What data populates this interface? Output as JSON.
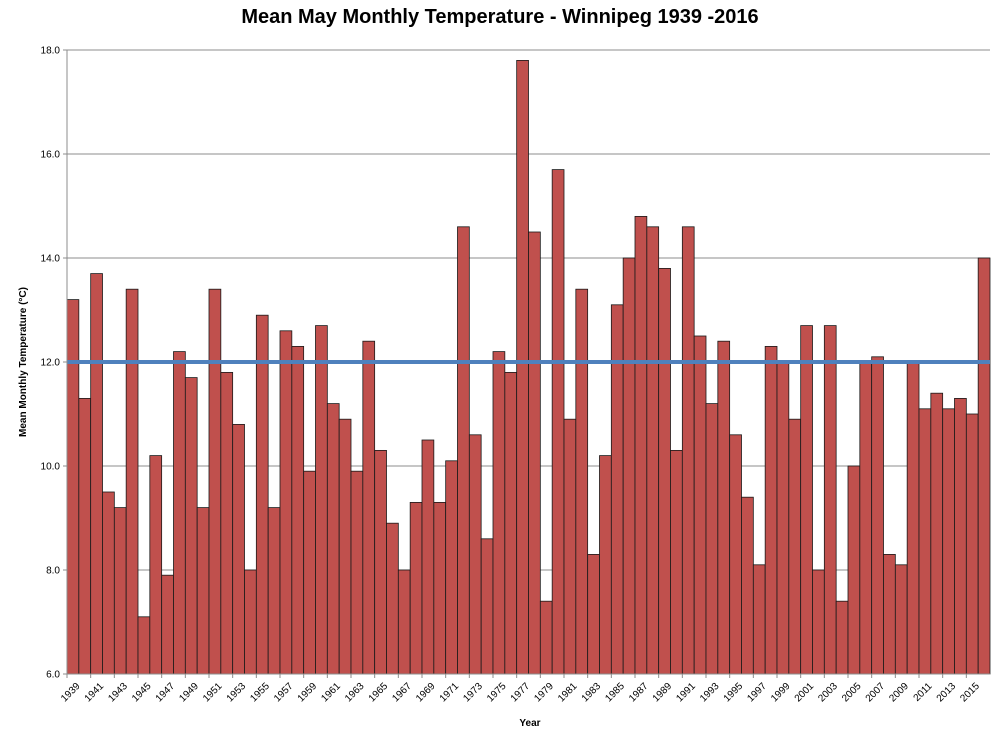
{
  "chart_data": {
    "type": "bar",
    "title": "Mean May Monthly Temperature - Winnipeg 1939 -2016",
    "xlabel": "Year",
    "ylabel": "Mean Monthly Temperature (°C)",
    "ylim": [
      6.0,
      18.0
    ],
    "yticks": [
      "6.0",
      "8.0",
      "10.0",
      "12.0",
      "14.0",
      "16.0",
      "18.0"
    ],
    "grid": true,
    "categories": [
      1939,
      1940,
      1941,
      1942,
      1943,
      1944,
      1945,
      1946,
      1947,
      1948,
      1949,
      1950,
      1951,
      1952,
      1953,
      1954,
      1955,
      1956,
      1957,
      1958,
      1959,
      1960,
      1961,
      1962,
      1963,
      1964,
      1965,
      1966,
      1967,
      1968,
      1969,
      1970,
      1971,
      1972,
      1973,
      1974,
      1975,
      1976,
      1977,
      1978,
      1979,
      1980,
      1981,
      1982,
      1983,
      1984,
      1985,
      1986,
      1987,
      1988,
      1989,
      1990,
      1991,
      1992,
      1993,
      1994,
      1995,
      1996,
      1997,
      1998,
      1999,
      2000,
      2001,
      2002,
      2003,
      2004,
      2005,
      2006,
      2007,
      2008,
      2009,
      2010,
      2011,
      2012,
      2013,
      2014,
      2015,
      2016
    ],
    "xtick_labels": [
      "1939",
      "1941",
      "1943",
      "1945",
      "1947",
      "1949",
      "1951",
      "1953",
      "1955",
      "1957",
      "1959",
      "1961",
      "1963",
      "1965",
      "1967",
      "1969",
      "1971",
      "1973",
      "1975",
      "1977",
      "1979",
      "1981",
      "1983",
      "1985",
      "1987",
      "1989",
      "1991",
      "1993",
      "1995",
      "1997",
      "1999",
      "2001",
      "2003",
      "2005",
      "2007",
      "2009",
      "2011",
      "2013",
      "2015"
    ],
    "series": [
      {
        "name": "Mean May Temperature",
        "color": "#c0504d",
        "values": [
          13.2,
          11.3,
          13.7,
          9.5,
          9.2,
          13.4,
          7.1,
          10.2,
          7.9,
          12.2,
          11.7,
          9.2,
          13.4,
          11.8,
          10.8,
          8.0,
          12.9,
          9.2,
          12.6,
          12.3,
          9.9,
          12.7,
          11.2,
          10.9,
          9.9,
          12.4,
          10.3,
          8.9,
          8.0,
          9.3,
          10.5,
          9.3,
          10.1,
          14.6,
          10.6,
          8.6,
          12.2,
          11.8,
          17.8,
          14.5,
          7.4,
          15.7,
          10.9,
          13.4,
          8.3,
          10.2,
          13.1,
          14.0,
          14.8,
          14.6,
          13.8,
          10.3,
          14.6,
          12.5,
          11.2,
          12.4,
          10.6,
          9.4,
          8.1,
          12.3,
          12.0,
          10.9,
          12.7,
          8.0,
          12.7,
          7.4,
          10.0,
          12.0,
          12.1,
          8.3,
          8.1,
          12.0,
          11.1,
          11.4,
          11.1,
          11.3,
          11.0,
          14.0
        ]
      }
    ],
    "reference_line": {
      "value": 12.0,
      "color": "#4f81bd"
    }
  }
}
